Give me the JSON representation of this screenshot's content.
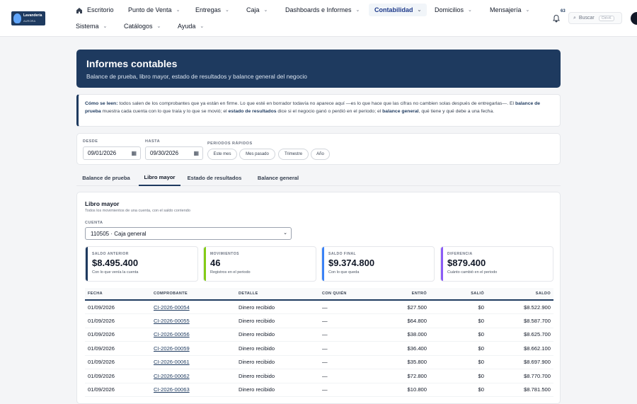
{
  "brand": {
    "name": "Lavandería",
    "sub": "AURORA"
  },
  "nav": {
    "row1": [
      {
        "label": "Escritorio",
        "icon": "home-icon",
        "active": false
      },
      {
        "label": "Punto de Venta",
        "active": false
      },
      {
        "label": "Entregas",
        "active": false
      },
      {
        "label": "Caja",
        "active": false
      },
      {
        "label": "Dashboards e Informes",
        "active": false
      },
      {
        "label": "Contabilidad",
        "active": true
      },
      {
        "label": "Domicilios",
        "active": false
      },
      {
        "label": "Mensajería",
        "active": false
      }
    ],
    "row2": [
      {
        "label": "Sistema"
      },
      {
        "label": "Catálogos"
      },
      {
        "label": "Ayuda"
      }
    ],
    "notifications_count": "63",
    "search_label": "Buscar",
    "search_shortcut": "Ctrl+K"
  },
  "hero": {
    "title": "Informes contables",
    "subtitle": "Balance de prueba, libro mayor, estado de resultados y balance general del negocio"
  },
  "info": {
    "lead": "Cómo se leen:",
    "t1": " todos salen de los comprobantes que ya están en firme. Lo que esté en borrador todavía no aparece aquí —es lo que hace que las cifras no cambien solas después de entregarlas—. El ",
    "b1": "balance de prueba",
    "t2": " muestra cada cuenta con lo que traía y lo que se movió; el ",
    "b2": "estado de resultados",
    "t3": " dice si el negocio ganó o perdió en el periodo; el ",
    "b3": "balance general",
    "t4": ", qué tiene y qué debe a una fecha."
  },
  "filters": {
    "desde_label": "DESDE",
    "desde_value": "09/01/2026",
    "hasta_label": "HASTA",
    "hasta_value": "09/30/2026",
    "rapidos_label": "PERIODOS RÁPIDOS",
    "quick": [
      "Este mes",
      "Mes pasado",
      "Trimestre",
      "Año"
    ]
  },
  "tabs": [
    {
      "label": "Balance de prueba",
      "active": false
    },
    {
      "label": "Libro mayor",
      "active": true
    },
    {
      "label": "Estado de resultados",
      "active": false
    },
    {
      "label": "Balance general",
      "active": false
    }
  ],
  "panel": {
    "title": "Libro mayor",
    "subtitle": "Todos los movimientos de una cuenta, con el saldo corriendo",
    "cuenta_label": "CUENTA",
    "cuenta_value": "110505 · Caja general"
  },
  "cards": [
    {
      "label": "SALDO ANTERIOR",
      "value": "$8.495.400",
      "sub": "Con lo que venía la cuenta",
      "color": "#1e3a5f"
    },
    {
      "label": "MOVIMIENTOS",
      "value": "46",
      "sub": "Registros en el periodo",
      "color": "#84cc16"
    },
    {
      "label": "SALDO FINAL",
      "value": "$9.374.800",
      "sub": "Con lo que queda",
      "color": "#3b82f6"
    },
    {
      "label": "DIFERENCIA",
      "value": "$879.400",
      "sub": "Cuánto cambió en el periodo",
      "color": "#8b5cf6"
    }
  ],
  "table": {
    "headers": [
      "FECHA",
      "COMPROBANTE",
      "DETALLE",
      "CON QUIÉN",
      "ENTRÓ",
      "SALIÓ",
      "SALDO"
    ],
    "rows": [
      [
        "01/09/2026",
        "CI-2026-00054",
        "Dinero recibido",
        "—",
        "$27.500",
        "$0",
        "$8.522.900"
      ],
      [
        "01/09/2026",
        "CI-2026-00055",
        "Dinero recibido",
        "—",
        "$64.800",
        "$0",
        "$8.587.700"
      ],
      [
        "01/09/2026",
        "CI-2026-00056",
        "Dinero recibido",
        "—",
        "$38.000",
        "$0",
        "$8.625.700"
      ],
      [
        "01/09/2026",
        "CI-2026-00059",
        "Dinero recibido",
        "—",
        "$36.400",
        "$0",
        "$8.662.100"
      ],
      [
        "01/09/2026",
        "CI-2026-00061",
        "Dinero recibido",
        "—",
        "$35.800",
        "$0",
        "$8.697.900"
      ],
      [
        "01/09/2026",
        "CI-2026-00062",
        "Dinero recibido",
        "—",
        "$72.800",
        "$0",
        "$8.770.700"
      ],
      [
        "01/09/2026",
        "CI-2026-00063",
        "Dinero recibido",
        "—",
        "$10.800",
        "$0",
        "$8.781.500"
      ]
    ]
  }
}
